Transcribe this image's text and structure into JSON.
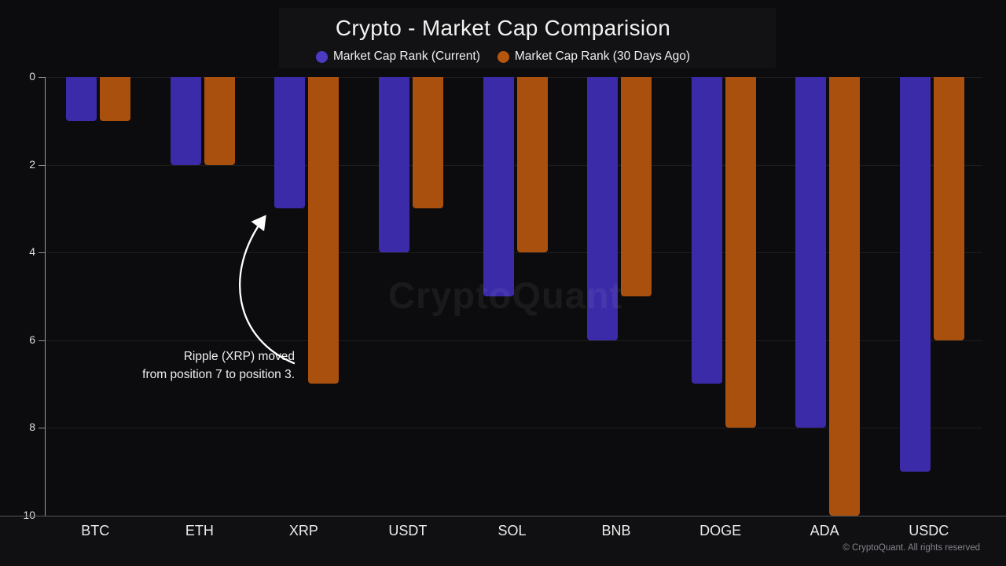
{
  "title": "Crypto - Market Cap Comparision",
  "legend": [
    {
      "label": "Market Cap Rank (Current)",
      "color": "#4b3ac2"
    },
    {
      "label": "Market Cap Rank (30 Days Ago)",
      "color": "#b5560e"
    }
  ],
  "chart_data": {
    "type": "bar",
    "title": "Crypto - Market Cap Comparision",
    "categories": [
      "BTC",
      "ETH",
      "XRP",
      "USDT",
      "SOL",
      "BNB",
      "DOGE",
      "ADA",
      "USDC"
    ],
    "series": [
      {
        "name": "Market Cap Rank (Current)",
        "color": "#3b2ba8",
        "values": [
          1,
          2,
          3,
          4,
          5,
          6,
          7,
          8,
          9
        ]
      },
      {
        "name": "Market Cap Rank (30 Days Ago)",
        "color": "#a9500e",
        "values": [
          1,
          2,
          7,
          3,
          4,
          5,
          8,
          10,
          6
        ]
      }
    ],
    "y_ticks": [
      0,
      2,
      4,
      6,
      8,
      10
    ],
    "ylim": [
      0,
      10
    ],
    "y_axis_inverted": true,
    "grid": true,
    "legend_position": "top-center",
    "xlabel": "",
    "ylabel": ""
  },
  "annotation": {
    "line1": "Ripple (XRP) moved",
    "line2": "from position 7 to position 3."
  },
  "watermark": "CryptoQuant",
  "footer": "© CryptoQuant. All rights reserved"
}
